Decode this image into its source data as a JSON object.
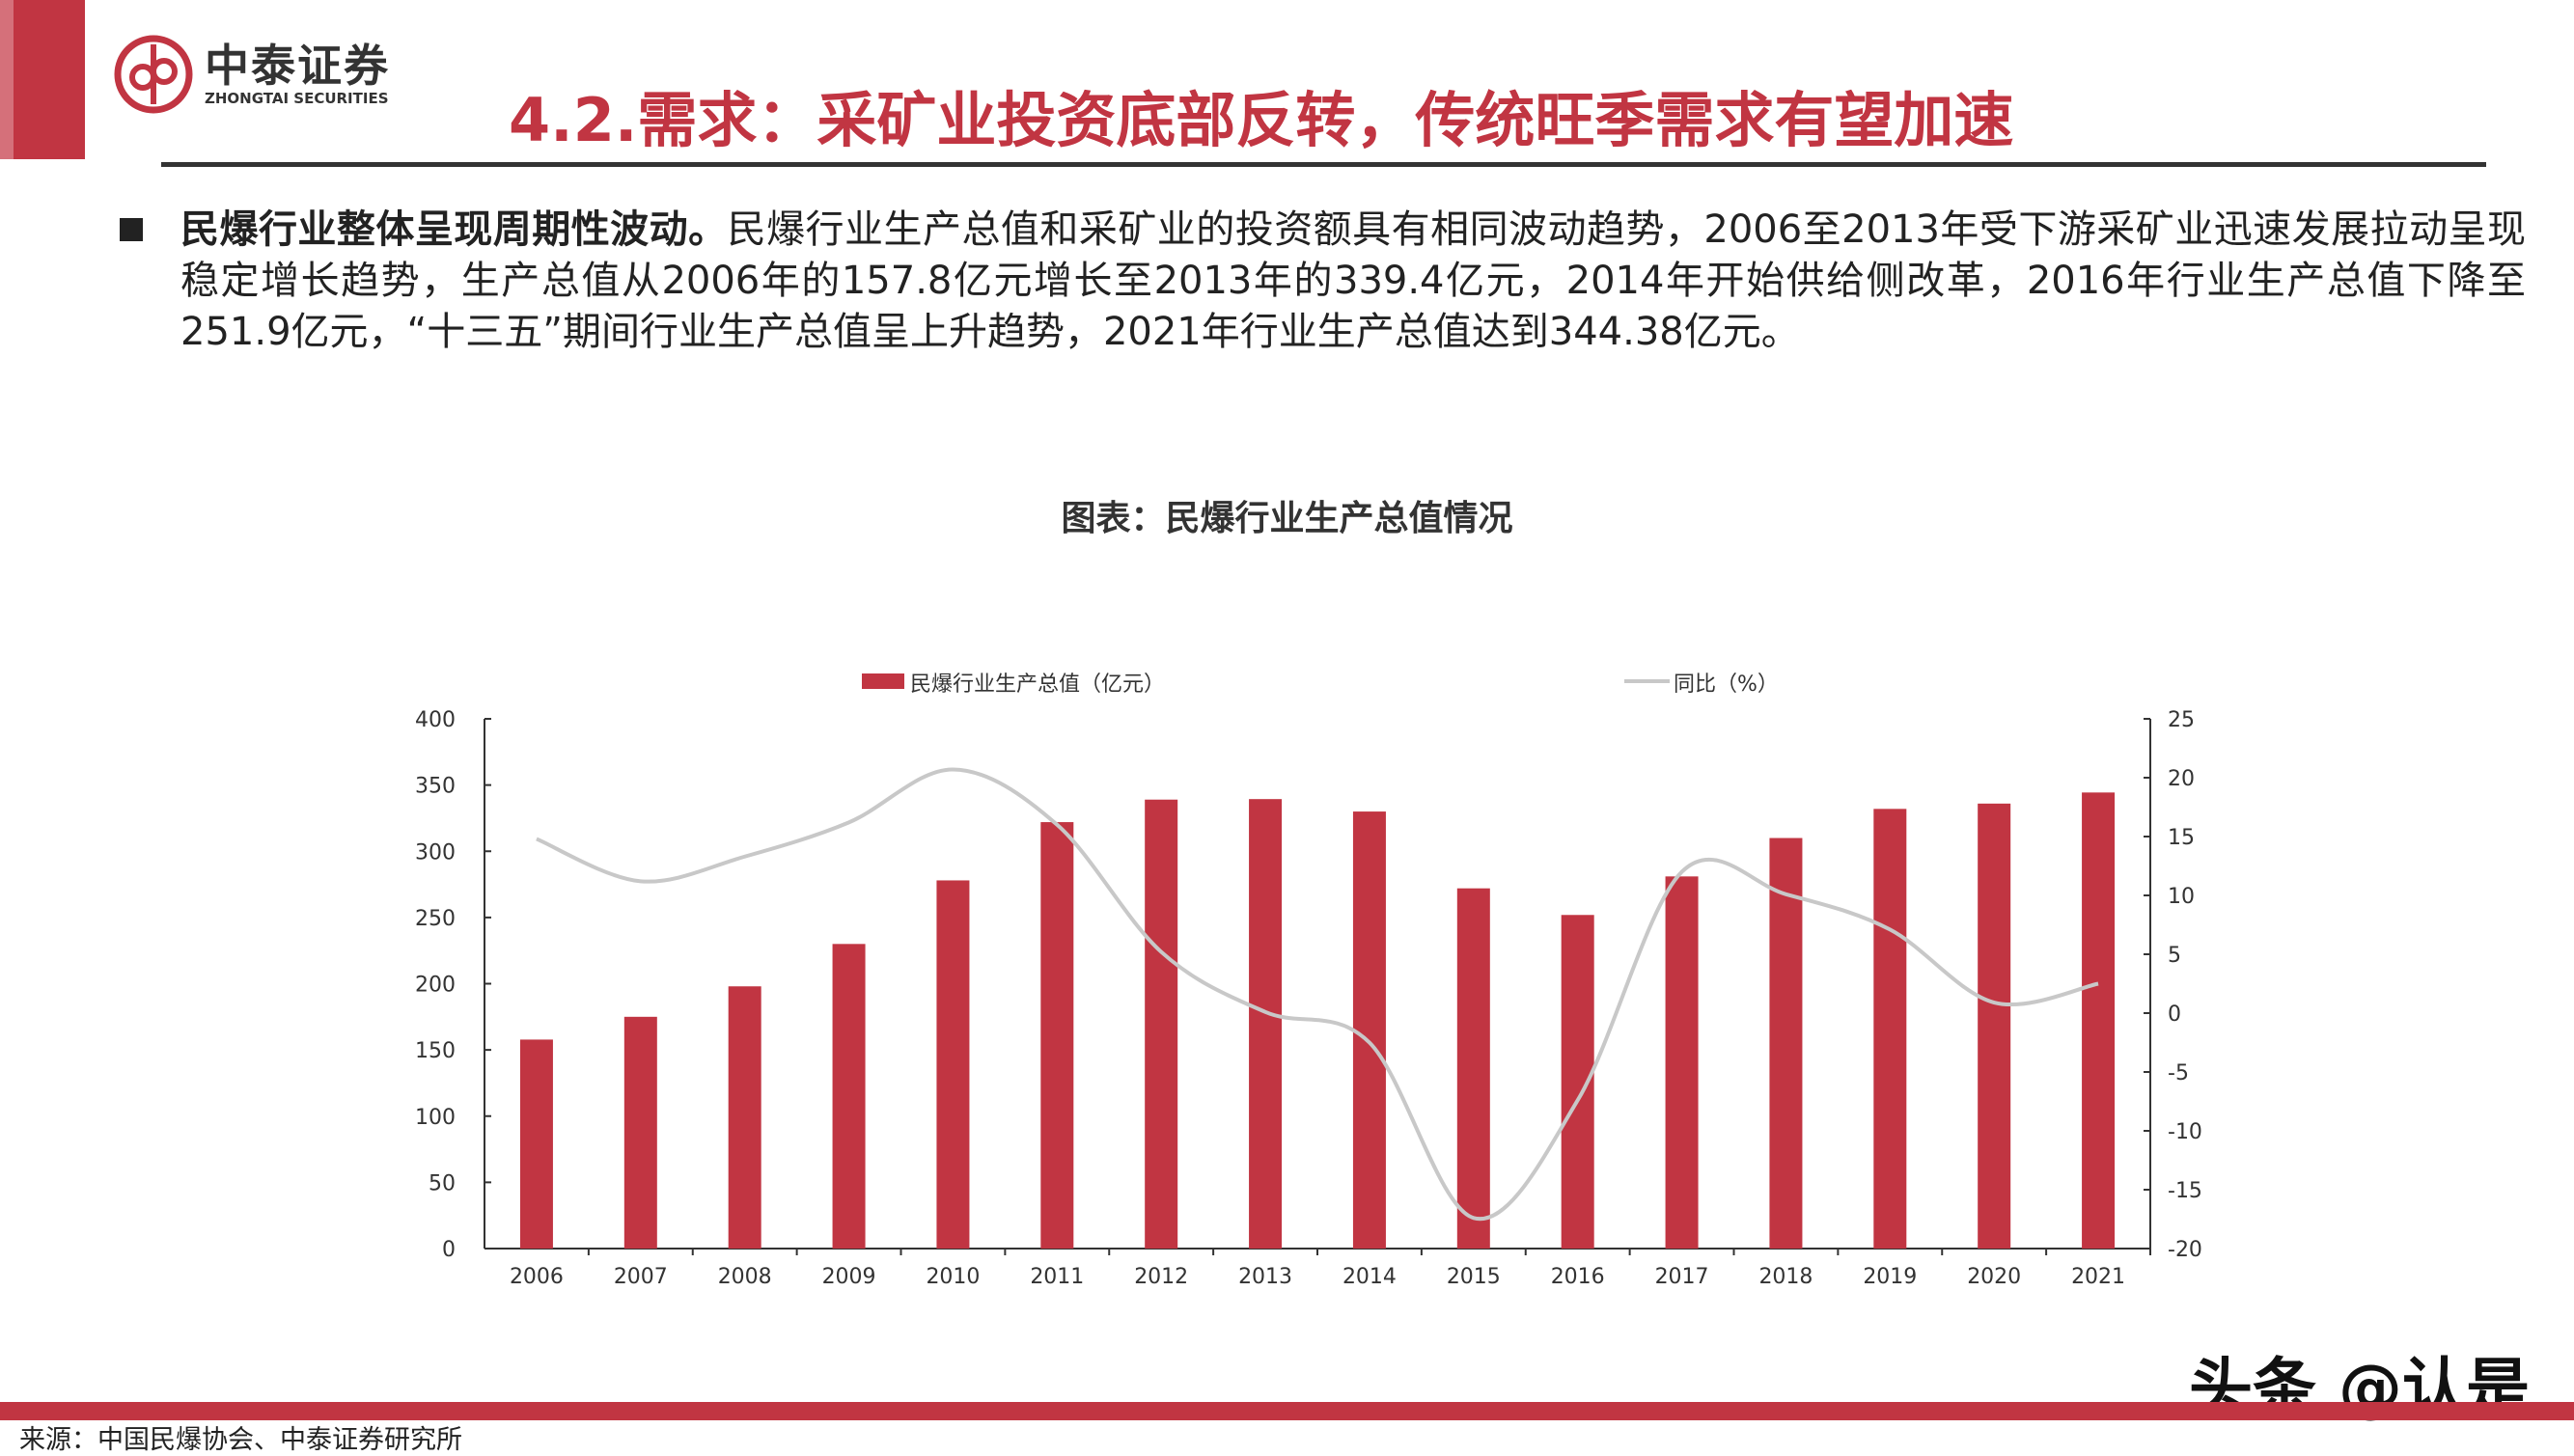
{
  "header": {
    "logo_cn": "中泰证券",
    "logo_en": "ZHONGTAI SECURITIES",
    "title": "4.2.需求：采矿业投资底部反转，传统旺季需求有望加速",
    "brand_color": "#c13542"
  },
  "body": {
    "lead": "民爆行业整体呈现周期性波动。",
    "text": "民爆行业生产总值和采矿业的投资额具有相同波动趋势，2006至2013年受下游采矿业迅速发展拉动呈现稳定增长趋势，生产总值从2006年的157.8亿元增长至2013年的339.4亿元，2014年开始供给侧改革，2016年行业生产总值下降至251.9亿元，“十三五”期间行业生产总值呈上升趋势，2021年行业生产总值达到344.38亿元。"
  },
  "chart_data": {
    "type": "bar+line",
    "title": "图表：民爆行业生产总值情况",
    "categories": [
      "2006",
      "2007",
      "2008",
      "2009",
      "2010",
      "2011",
      "2012",
      "2013",
      "2014",
      "2015",
      "2016",
      "2017",
      "2018",
      "2019",
      "2020",
      "2021"
    ],
    "series": [
      {
        "name": "民爆行业生产总值（亿元）",
        "type": "bar",
        "axis": "left",
        "color": "#c13542",
        "values": [
          157.8,
          175,
          198,
          230,
          278,
          322,
          339,
          339.4,
          330,
          272,
          251.9,
          281,
          310,
          332,
          336,
          344.38
        ]
      },
      {
        "name": "同比（%）",
        "type": "line",
        "axis": "right",
        "color": "#c8c8c8",
        "values": [
          14.8,
          11.2,
          13.3,
          16.2,
          20.7,
          16.0,
          5.2,
          0.1,
          -2.5,
          -17.4,
          -7.4,
          12.0,
          10.1,
          7.1,
          0.9,
          2.5
        ]
      }
    ],
    "y_left": {
      "min": 0,
      "max": 400,
      "ticks": [
        "0",
        "50",
        "100",
        "150",
        "200",
        "250",
        "300",
        "350",
        "400"
      ]
    },
    "y_right": {
      "min": -20,
      "max": 25,
      "ticks": [
        "-20",
        "-15",
        "-10",
        "-5",
        "0",
        "5",
        "10",
        "15",
        "20",
        "25"
      ]
    },
    "grid": false,
    "legend": "top"
  },
  "footer": {
    "source": "来源：中国民爆协会、中泰证券研究所",
    "watermark": "头条 @认是"
  }
}
